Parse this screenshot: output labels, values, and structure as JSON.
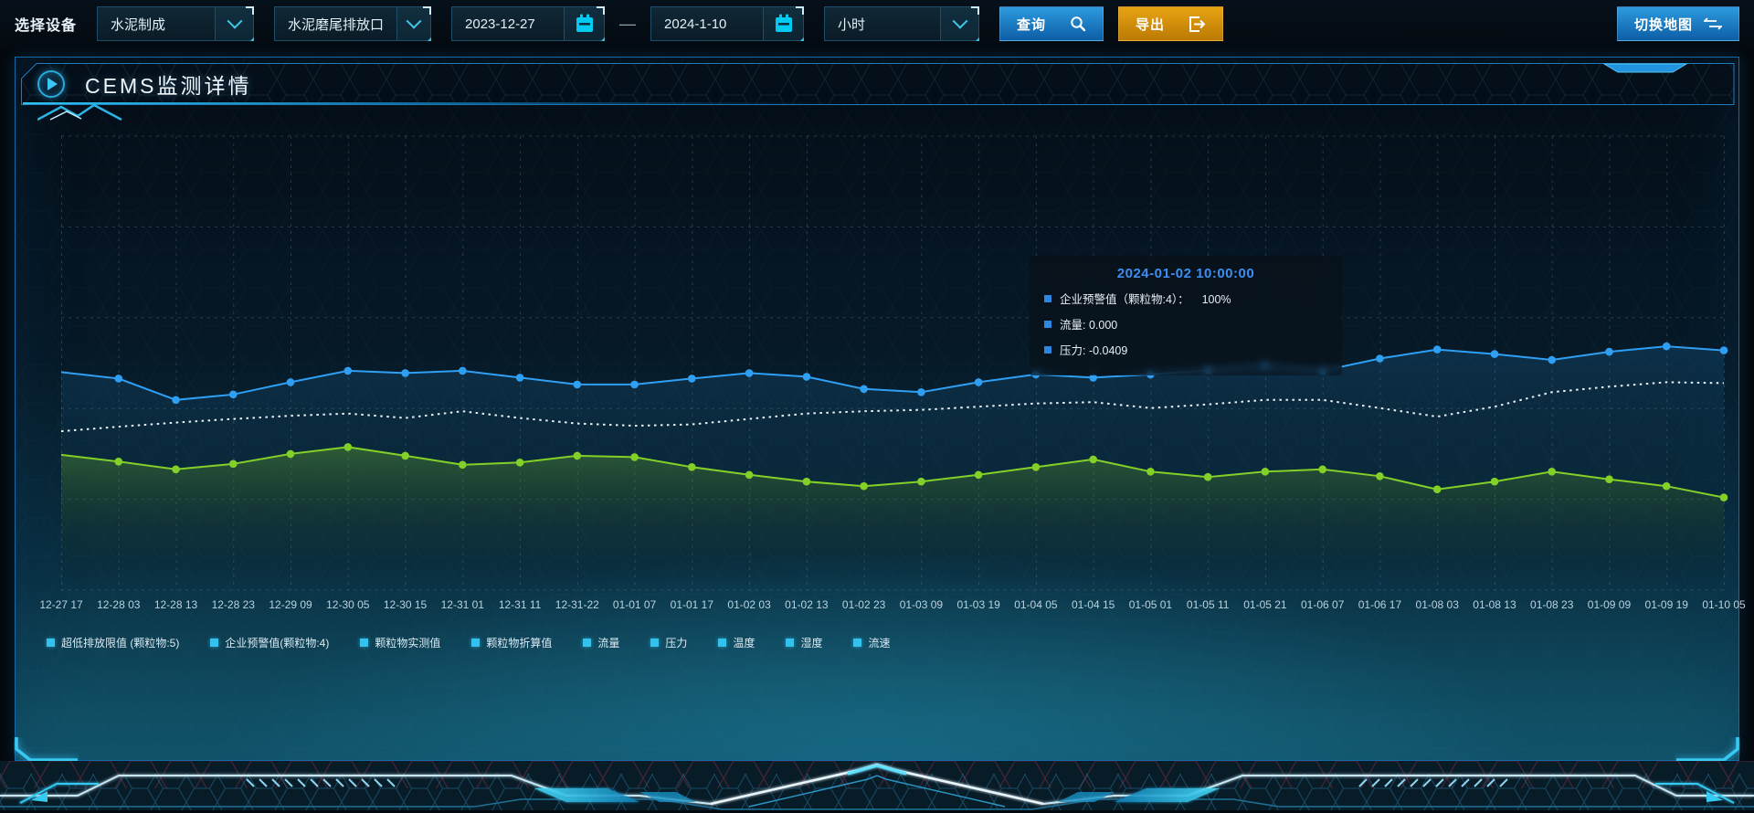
{
  "toolbar": {
    "device_label": "选择设备",
    "device_select": {
      "value": "水泥制成"
    },
    "outlet_select": {
      "value": "水泥磨尾排放口"
    },
    "date_start": "2023-12-27",
    "date_separator": "—",
    "date_end": "2024-1-10",
    "interval_select": {
      "value": "小时"
    },
    "query_button": "查询",
    "export_button": "导出",
    "switch_map_button": "切换地图",
    "query_color": "#1a7fc4",
    "export_color": "#d18f0b"
  },
  "panel": {
    "title": "CEMS监测详情"
  },
  "tooltip": {
    "title": "2024-01-02 10:00:00",
    "title_color": "#3d8ef2",
    "marker_color": "#2f86e0",
    "items": [
      {
        "text": "企业预警值（颗粒物:4）：    100%"
      },
      {
        "text": "流量: 0.000"
      },
      {
        "text": "压力: -0.0409"
      }
    ]
  },
  "chart_data": {
    "type": "line",
    "title": "CEMS监测详情",
    "categories": [
      "12-27 17",
      "12-28 03",
      "12-28 13",
      "12-28 23",
      "12-29 09",
      "12-30 05",
      "12-30 15",
      "12-31 01",
      "12-31 11",
      "12-31-22",
      "01-01 07",
      "01-01 17",
      "01-02 03",
      "01-02 13",
      "01-02 23",
      "01-03 09",
      "01-03 19",
      "01-04 05",
      "01-04 15",
      "01-05 01",
      "01-05 11",
      "01-05 21",
      "01-06 07",
      "01-06 17",
      "01-08 03",
      "01-08 13",
      "01-08 23",
      "01-09 09",
      "01-09 19",
      "01-10 05"
    ],
    "y_axis": {
      "visible": false,
      "unit": "relative height % of plot area (no y-axis labels shown)",
      "range": [
        0,
        100
      ]
    },
    "grid": {
      "dashed": true,
      "h_lines": 6,
      "v_line_per_category": true
    },
    "series": [
      {
        "name": "企业预警值(颗粒物:4)",
        "color": "#2f9ff3",
        "line_style": "solid",
        "markers": true,
        "area_color": "rgba(40,140,210,0.20)",
        "values": [
          48.0,
          46.6,
          41.9,
          43.1,
          45.8,
          48.3,
          47.8,
          48.3,
          46.8,
          45.3,
          45.3,
          46.6,
          47.8,
          47.0,
          44.3,
          43.6,
          45.8,
          47.5,
          46.8,
          47.5,
          48.5,
          49.5,
          48.3,
          51.0,
          53.0,
          52.0,
          50.7,
          52.5,
          53.7,
          52.8
        ]
      },
      {
        "name": "流量",
        "color": "#e8f2f7",
        "line_style": "dotted",
        "markers": false,
        "area_color": null,
        "values": [
          35.0,
          36.0,
          36.9,
          37.7,
          38.4,
          38.9,
          37.9,
          39.4,
          37.9,
          36.7,
          36.2,
          36.5,
          37.7,
          38.9,
          39.4,
          39.7,
          40.4,
          41.1,
          41.4,
          40.1,
          40.9,
          41.9,
          41.9,
          40.1,
          38.2,
          40.4,
          43.6,
          44.8,
          45.8,
          45.6
        ]
      },
      {
        "name": "压力",
        "color": "#82d028",
        "line_style": "solid",
        "markers": true,
        "area_color": "rgba(130,208,40,0.30)",
        "values": [
          29.8,
          28.3,
          26.6,
          27.8,
          30.0,
          31.5,
          29.6,
          27.6,
          28.1,
          29.6,
          29.3,
          27.1,
          25.4,
          23.9,
          22.9,
          23.9,
          25.4,
          27.1,
          28.8,
          26.1,
          24.9,
          26.1,
          26.6,
          25.1,
          22.2,
          23.9,
          26.1,
          24.4,
          22.9,
          20.4
        ]
      }
    ],
    "legend_position": "bottom",
    "legend_marker_color": "#35c1ee",
    "legend": [
      "超低排放限值 (颗粒物:5)",
      "企业预警值(颗粒物:4)",
      "颗粒物实测值",
      "颗粒物折算值",
      "流量",
      "压力",
      "温度",
      "湿度",
      "流速"
    ]
  }
}
